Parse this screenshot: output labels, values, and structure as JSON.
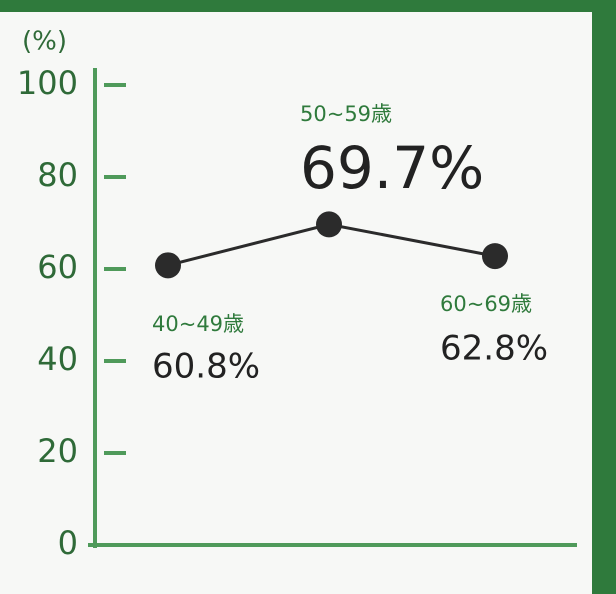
{
  "chart_data": {
    "type": "line",
    "ylabel": "(%)",
    "categories": [
      "40~49歳",
      "50~59歳",
      "60~69歳"
    ],
    "values": [
      60.8,
      69.7,
      62.8
    ],
    "value_labels": [
      "60.8%",
      "69.7%",
      "62.8%"
    ],
    "color": "#2b2b2b",
    "ylim": [
      0,
      100
    ],
    "yticks": [
      0,
      20,
      40,
      60,
      80,
      100
    ]
  }
}
